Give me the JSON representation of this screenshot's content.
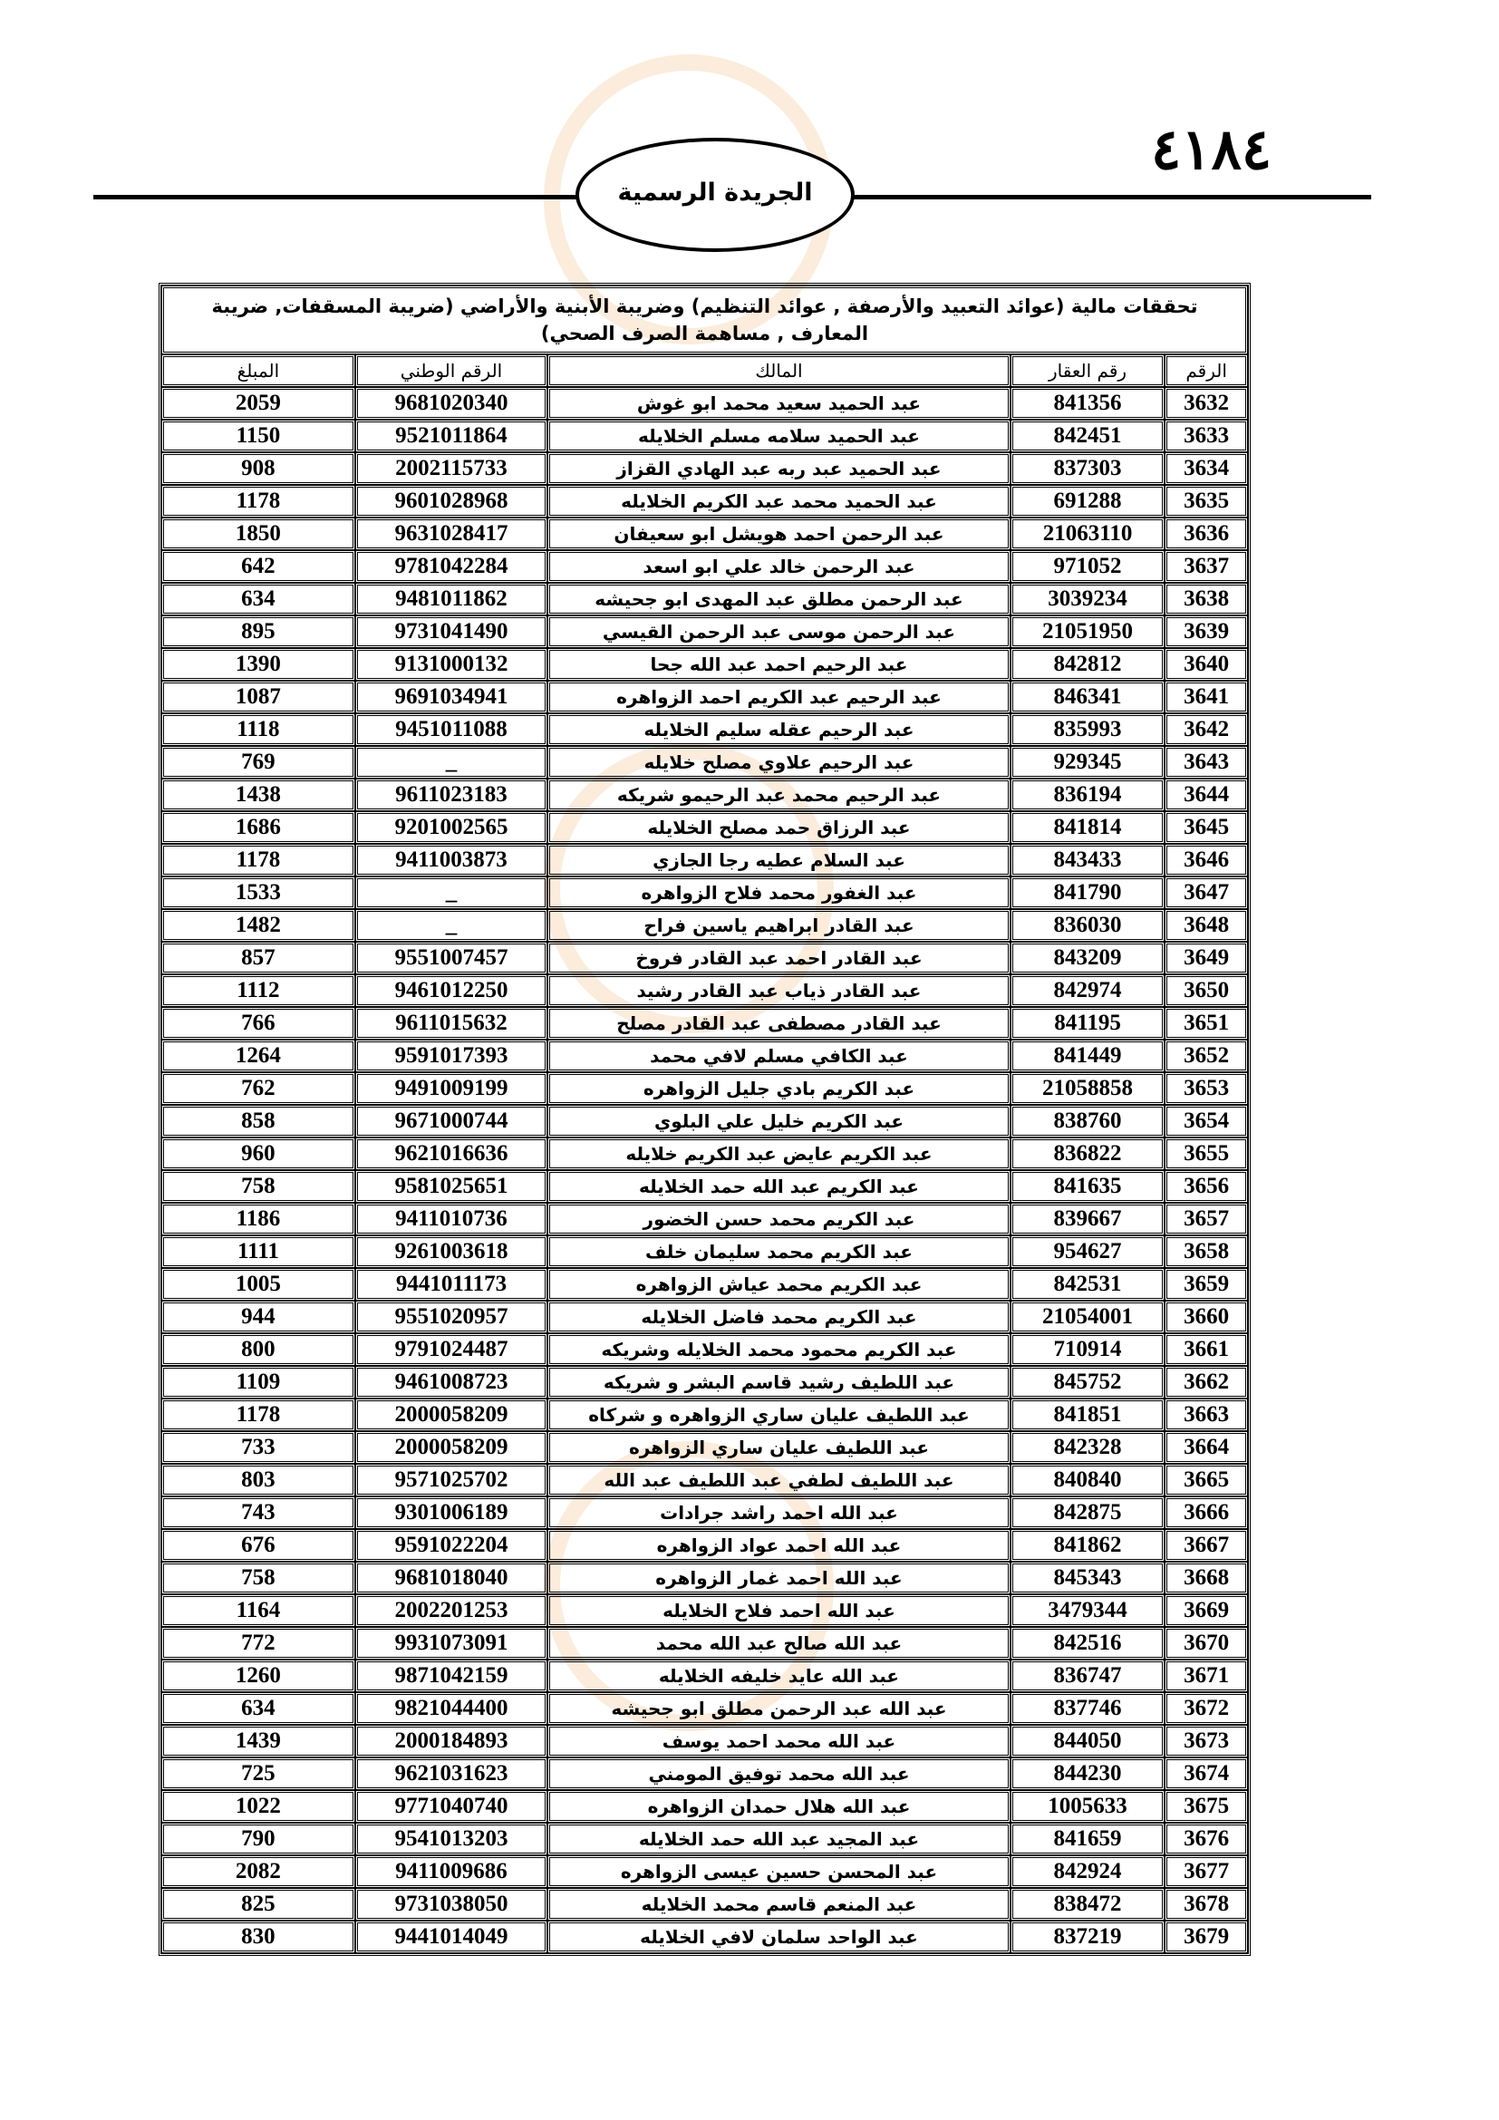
{
  "header": {
    "page_number": "٤١٨٤",
    "gazette_title": "الجريدة الرسمية"
  },
  "table": {
    "title": "تحققات مالية (عوائد التعبيد والأرصفة , عوائد التنظيم) وضريبة الأبنية والأراضي (ضريبة المسقفات, ضريبة المعارف , مساهمة الصرف الصحي)",
    "columns": [
      "الرقم",
      "رقم العقار",
      "المالك",
      "الرقم الوطني",
      "المبلغ"
    ],
    "rows": [
      [
        "3632",
        "841356",
        "عبد الحميد سعيد محمد ابو غوش",
        "9681020340",
        "2059"
      ],
      [
        "3633",
        "842451",
        "عبد الحميد سلامه مسلم الخلايله",
        "9521011864",
        "1150"
      ],
      [
        "3634",
        "837303",
        "عبد الحميد عبد ربه عبد الهادي القزاز",
        "2002115733",
        "908"
      ],
      [
        "3635",
        "691288",
        "عبد الحميد محمد عبد الكريم الخلايله",
        "9601028968",
        "1178"
      ],
      [
        "3636",
        "21063110",
        "عبد الرحمن احمد هويشل ابو سعيفان",
        "9631028417",
        "1850"
      ],
      [
        "3637",
        "971052",
        "عبد الرحمن خالد علي ابو اسعد",
        "9781042284",
        "642"
      ],
      [
        "3638",
        "3039234",
        "عبد الرحمن مطلق عبد المهدى ابو جحيشه",
        "9481011862",
        "634"
      ],
      [
        "3639",
        "21051950",
        "عبد الرحمن موسى عبد الرحمن القيسي",
        "9731041490",
        "895"
      ],
      [
        "3640",
        "842812",
        "عبد الرحيم احمد عبد الله جحا",
        "9131000132",
        "1390"
      ],
      [
        "3641",
        "846341",
        "عبد الرحيم عبد الكريم احمد الزواهره",
        "9691034941",
        "1087"
      ],
      [
        "3642",
        "835993",
        "عبد الرحيم عقله سليم الخلايله",
        "9451011088",
        "1118"
      ],
      [
        "3643",
        "929345",
        "عبد الرحيم علاوي مصلح خلايله",
        "_",
        "769"
      ],
      [
        "3644",
        "836194",
        "عبد الرحيم محمد عبد الرحيمو شريكه",
        "9611023183",
        "1438"
      ],
      [
        "3645",
        "841814",
        "عبد الرزاق حمد مصلح الخلايله",
        "9201002565",
        "1686"
      ],
      [
        "3646",
        "843433",
        "عبد السلام عطيه رجا الجازي",
        "9411003873",
        "1178"
      ],
      [
        "3647",
        "841790",
        "عبد الغفور محمد فلاح الزواهره",
        "_",
        "1533"
      ],
      [
        "3648",
        "836030",
        "عبد القادر ابراهيم ياسين فراح",
        "_",
        "1482"
      ],
      [
        "3649",
        "843209",
        "عبد القادر احمد عبد القادر فروخ",
        "9551007457",
        "857"
      ],
      [
        "3650",
        "842974",
        "عبد القادر ذياب عبد القادر رشيد",
        "9461012250",
        "1112"
      ],
      [
        "3651",
        "841195",
        "عبد القادر مصطفى عبد القادر مصلح",
        "9611015632",
        "766"
      ],
      [
        "3652",
        "841449",
        "عبد الكافي مسلم لافي محمد",
        "9591017393",
        "1264"
      ],
      [
        "3653",
        "21058858",
        "عبد الكريم بادي جليل الزواهره",
        "9491009199",
        "762"
      ],
      [
        "3654",
        "838760",
        "عبد الكريم خليل علي البلوي",
        "9671000744",
        "858"
      ],
      [
        "3655",
        "836822",
        "عبد الكريم عايض عبد الكريم خلايله",
        "9621016636",
        "960"
      ],
      [
        "3656",
        "841635",
        "عبد الكريم عبد الله حمد الخلايله",
        "9581025651",
        "758"
      ],
      [
        "3657",
        "839667",
        "عبد الكريم محمد حسن الخضور",
        "9411010736",
        "1186"
      ],
      [
        "3658",
        "954627",
        "عبد الكريم محمد سليمان خلف",
        "9261003618",
        "1111"
      ],
      [
        "3659",
        "842531",
        "عبد الكريم محمد عياش الزواهره",
        "9441011173",
        "1005"
      ],
      [
        "3660",
        "21054001",
        "عبد الكريم محمد فاضل الخلايله",
        "9551020957",
        "944"
      ],
      [
        "3661",
        "710914",
        "عبد الكريم محمود محمد الخلايله وشريكه",
        "9791024487",
        "800"
      ],
      [
        "3662",
        "845752",
        "عبد اللطيف رشيد قاسم البشر و شريكه",
        "9461008723",
        "1109"
      ],
      [
        "3663",
        "841851",
        "عبد اللطيف عليان ساري الزواهره و شركاه",
        "2000058209",
        "1178"
      ],
      [
        "3664",
        "842328",
        "عبد اللطيف عليان ساري الزواهره",
        "2000058209",
        "733"
      ],
      [
        "3665",
        "840840",
        "عبد اللطيف لطفي عبد اللطيف عبد الله",
        "9571025702",
        "803"
      ],
      [
        "3666",
        "842875",
        "عبد الله احمد راشد جرادات",
        "9301006189",
        "743"
      ],
      [
        "3667",
        "841862",
        "عبد الله احمد عواد الزواهره",
        "9591022204",
        "676"
      ],
      [
        "3668",
        "845343",
        "عبد الله احمد غمار الزواهره",
        "9681018040",
        "758"
      ],
      [
        "3669",
        "3479344",
        "عبد الله احمد فلاح الخلايله",
        "2002201253",
        "1164"
      ],
      [
        "3670",
        "842516",
        "عبد الله صالح عبد الله محمد",
        "9931073091",
        "772"
      ],
      [
        "3671",
        "836747",
        "عبد الله عايد خليفه الخلايله",
        "9871042159",
        "1260"
      ],
      [
        "3672",
        "837746",
        "عبد الله عبد الرحمن مطلق ابو جحيشه",
        "9821044400",
        "634"
      ],
      [
        "3673",
        "844050",
        "عبد الله محمد احمد يوسف",
        "2000184893",
        "1439"
      ],
      [
        "3674",
        "844230",
        "عبد الله محمد توفيق المومني",
        "9621031623",
        "725"
      ],
      [
        "3675",
        "1005633",
        "عبد الله هلال حمدان الزواهره",
        "9771040740",
        "1022"
      ],
      [
        "3676",
        "841659",
        "عبد المجيد عبد الله حمد الخلايله",
        "9541013203",
        "790"
      ],
      [
        "3677",
        "842924",
        "عبد المحسن حسين عيسى الزواهره",
        "9411009686",
        "2082"
      ],
      [
        "3678",
        "838472",
        "عبد المنعم قاسم محمد الخلايله",
        "9731038050",
        "825"
      ],
      [
        "3679",
        "837219",
        "عبد الواحد سلمان لافي الخلايله",
        "9441014049",
        "830"
      ]
    ]
  }
}
